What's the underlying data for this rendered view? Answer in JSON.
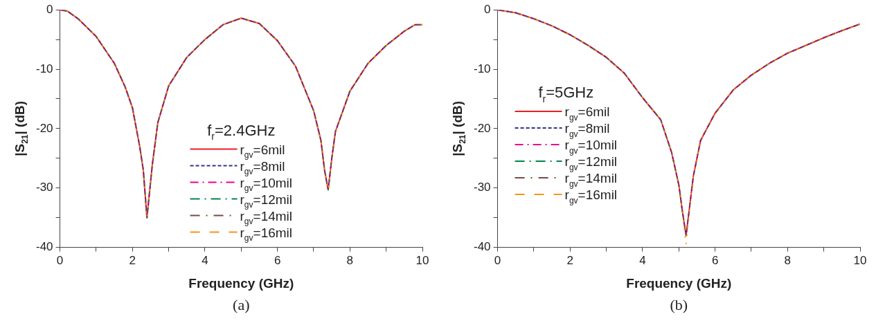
{
  "chart_data": [
    {
      "type": "line",
      "xlabel": "Frequency (GHz)",
      "ylabel": "|S$_{21}$| (dB)",
      "legend_title": "f$_{r}$=2.4GHz",
      "legend": "bottom",
      "grid": false,
      "marker": "none",
      "annotations": [
        "(a)"
      ],
      "xlim": [
        0,
        10
      ],
      "ylim": [
        -40,
        0
      ],
      "xticks": [
        0,
        {
          "value": 1,
          "label": null
        },
        2,
        {
          "value": 3,
          "label": null
        },
        4,
        {
          "value": 5,
          "label": null
        },
        6,
        {
          "value": 7,
          "label": null
        },
        8,
        {
          "value": 9,
          "label": null
        },
        10
      ],
      "yticks": [
        -40,
        {
          "value": -35,
          "label": null
        },
        -30,
        {
          "value": -25,
          "label": null
        },
        -20,
        {
          "value": -15,
          "label": null
        },
        -10,
        {
          "value": -5,
          "label": null
        },
        0
      ],
      "x": [
        0,
        0.2,
        0.5,
        1.0,
        1.5,
        1.8,
        2.0,
        2.2,
        2.3,
        2.35,
        2.4,
        2.45,
        2.55,
        2.7,
        3.0,
        3.5,
        4.0,
        4.5,
        5.0,
        5.5,
        6.0,
        6.5,
        7.0,
        7.2,
        7.3,
        7.4,
        7.5,
        7.6,
        8.0,
        8.5,
        9.0,
        9.5,
        9.8,
        10
      ],
      "series": [
        {
          "name": "r$_{gv}$=6mil",
          "color": "#ed1c24",
          "line_style": "solid",
          "values": [
            0,
            -0.2,
            -1.5,
            -4.5,
            -9,
            -13,
            -16.5,
            -23,
            -27,
            -31,
            -35,
            -32,
            -26,
            -19,
            -12.8,
            -8,
            -5,
            -2.5,
            -1.4,
            -2.3,
            -5.2,
            -9.5,
            -17,
            -22,
            -27,
            -30.3,
            -25,
            -20.5,
            -13.7,
            -9,
            -6,
            -3.6,
            -2.5,
            -2.5
          ]
        },
        {
          "name": "r$_{gv}$=8mil",
          "color": "#2e3192",
          "line_style": "dashed",
          "values": [
            0,
            -0.2,
            -1.5,
            -4.5,
            -9,
            -13,
            -16.5,
            -23,
            -27,
            -31,
            -35,
            -32,
            -26,
            -19,
            -12.8,
            -8,
            -5,
            -2.5,
            -1.4,
            -2.3,
            -5.2,
            -9.5,
            -17,
            -22,
            -27,
            -30.3,
            -25,
            -20.5,
            -13.7,
            -9,
            -6,
            -3.6,
            -2.5,
            -2.5
          ]
        },
        {
          "name": "r$_{gv}$=10mil",
          "color": "#ec008c",
          "line_style": "dashed",
          "values": [
            0,
            -0.2,
            -1.5,
            -4.5,
            -9,
            -13,
            -16.5,
            -23,
            -27,
            -31,
            -35,
            -32,
            -26,
            -19,
            -12.8,
            -8,
            -5,
            -2.5,
            -1.4,
            -2.3,
            -5.2,
            -9.5,
            -17,
            -22,
            -27,
            -30.3,
            -25,
            -20.5,
            -13.7,
            -9,
            -6,
            -3.6,
            -2.5,
            -2.5
          ]
        },
        {
          "name": "r$_{gv}$=12mil",
          "color": "#00854a",
          "line_style": "dashed",
          "values": [
            0,
            -0.2,
            -1.5,
            -4.5,
            -9,
            -13,
            -16.5,
            -23,
            -27,
            -31,
            -35,
            -32,
            -26,
            -19,
            -12.8,
            -8,
            -5,
            -2.5,
            -1.4,
            -2.3,
            -5.2,
            -9.5,
            -17,
            -22,
            -27,
            -30.3,
            -25,
            -20.5,
            -13.7,
            -9,
            -6,
            -3.6,
            -2.5,
            -2.5
          ]
        },
        {
          "name": "r$_{gv}$=14mil",
          "color": "#754c44",
          "line_style": "dashed",
          "values": [
            0,
            -0.2,
            -1.5,
            -4.5,
            -9,
            -13,
            -16.5,
            -23,
            -27,
            -31,
            -35,
            -32,
            -26,
            -19,
            -12.8,
            -8,
            -5,
            -2.5,
            -1.4,
            -2.3,
            -5.2,
            -9.5,
            -17,
            -22,
            -27,
            -30.3,
            -25,
            -20.5,
            -13.7,
            -9,
            -6,
            -3.6,
            -2.5,
            -2.5
          ]
        },
        {
          "name": "r$_{gv}$=16mil",
          "color": "#f7941d",
          "line_style": "dashed",
          "values": [
            0,
            -0.2,
            -1.5,
            -4.5,
            -9,
            -13,
            -16.5,
            -23,
            -27,
            -31,
            -35,
            -32,
            -26,
            -19,
            -12.8,
            -8,
            -5,
            -2.5,
            -1.4,
            -2.3,
            -5.2,
            -9.5,
            -17,
            -22,
            -27,
            -30.3,
            -25,
            -20.5,
            -13.7,
            -9,
            -6,
            -3.6,
            -2.5,
            -2.5
          ]
        }
      ]
    },
    {
      "type": "line",
      "xlabel": "Frequency (GHz)",
      "ylabel": "|S$_{21}$| (dB)",
      "legend_title": "f$_{r}$=5GHz",
      "legend": "left",
      "grid": false,
      "marker": "none",
      "annotations": [
        "(b)"
      ],
      "xlim": [
        0,
        10
      ],
      "ylim": [
        -40,
        0
      ],
      "xticks": [
        0,
        {
          "value": 1,
          "label": null
        },
        2,
        {
          "value": 3,
          "label": null
        },
        4,
        {
          "value": 5,
          "label": null
        },
        6,
        {
          "value": 7,
          "label": null
        },
        8,
        {
          "value": 9,
          "label": null
        },
        10
      ],
      "yticks": [
        -40,
        {
          "value": -35,
          "label": null
        },
        -30,
        {
          "value": -25,
          "label": null
        },
        -20,
        {
          "value": -15,
          "label": null
        },
        -10,
        {
          "value": -5,
          "label": null
        },
        0
      ],
      "x": [
        0,
        0.5,
        1.0,
        1.5,
        2.0,
        2.5,
        3.0,
        3.5,
        4.0,
        4.5,
        4.8,
        5.0,
        5.1,
        5.2,
        5.3,
        5.4,
        5.6,
        6.0,
        6.5,
        7.0,
        7.5,
        8.0,
        8.5,
        9.0,
        9.5,
        10
      ],
      "series": [
        {
          "name": "r$_{gv}$=6mil",
          "color": "#ed1c24",
          "line_style": "solid",
          "values": [
            0,
            -0.5,
            -1.5,
            -2.7,
            -4.2,
            -6,
            -8,
            -10.7,
            -14.8,
            -18.5,
            -24,
            -29.5,
            -34,
            -38,
            -33,
            -28,
            -22,
            -17.4,
            -13.5,
            -11,
            -9,
            -7.3,
            -6,
            -4.7,
            -3.5,
            -2.4
          ]
        },
        {
          "name": "r$_{gv}$=8mil",
          "color": "#2e3192",
          "line_style": "dashed",
          "values": [
            0,
            -0.5,
            -1.5,
            -2.7,
            -4.2,
            -6,
            -8,
            -10.7,
            -14.8,
            -18.5,
            -24,
            -29.5,
            -34,
            -38,
            -33,
            -28,
            -22,
            -17.4,
            -13.5,
            -11,
            -9,
            -7.3,
            -6,
            -4.7,
            -3.5,
            -2.4
          ]
        },
        {
          "name": "r$_{gv}$=10mil",
          "color": "#ec008c",
          "line_style": "dashed",
          "values": [
            0,
            -0.5,
            -1.5,
            -2.7,
            -4.2,
            -6,
            -8,
            -10.7,
            -14.8,
            -18.5,
            -24,
            -29.5,
            -34,
            -38,
            -33,
            -28,
            -22,
            -17.4,
            -13.5,
            -11,
            -9,
            -7.3,
            -6,
            -4.7,
            -3.5,
            -2.4
          ]
        },
        {
          "name": "r$_{gv}$=12mil",
          "color": "#00854a",
          "line_style": "dashed",
          "values": [
            0,
            -0.5,
            -1.5,
            -2.7,
            -4.2,
            -6,
            -8,
            -10.7,
            -14.8,
            -18.5,
            -24,
            -29.5,
            -34,
            -38,
            -33,
            -28,
            -22,
            -17.4,
            -13.5,
            -11,
            -9,
            -7.3,
            -6,
            -4.7,
            -3.5,
            -2.4
          ]
        },
        {
          "name": "r$_{gv}$=14mil",
          "color": "#754c44",
          "line_style": "dashed",
          "values": [
            0,
            -0.5,
            -1.5,
            -2.7,
            -4.2,
            -6,
            -8,
            -10.7,
            -14.8,
            -18.5,
            -24,
            -29.5,
            -34,
            -38,
            -33,
            -28,
            -22,
            -17.4,
            -13.5,
            -11,
            -9,
            -7.3,
            -6,
            -4.7,
            -3.5,
            -2.4
          ]
        },
        {
          "name": "r$_{gv}$=16mil",
          "color": "#f7941d",
          "line_style": "dashed",
          "values": [
            0,
            -0.5,
            -1.5,
            -2.7,
            -4.2,
            -6,
            -8,
            -10.7,
            -14.8,
            -18.5,
            -24,
            -29.5,
            -34,
            -39.5,
            -33,
            -28,
            -22,
            -17.4,
            -13.5,
            -11,
            -9,
            -7.3,
            -6,
            -4.7,
            -3.5,
            -2.4
          ]
        }
      ]
    }
  ]
}
